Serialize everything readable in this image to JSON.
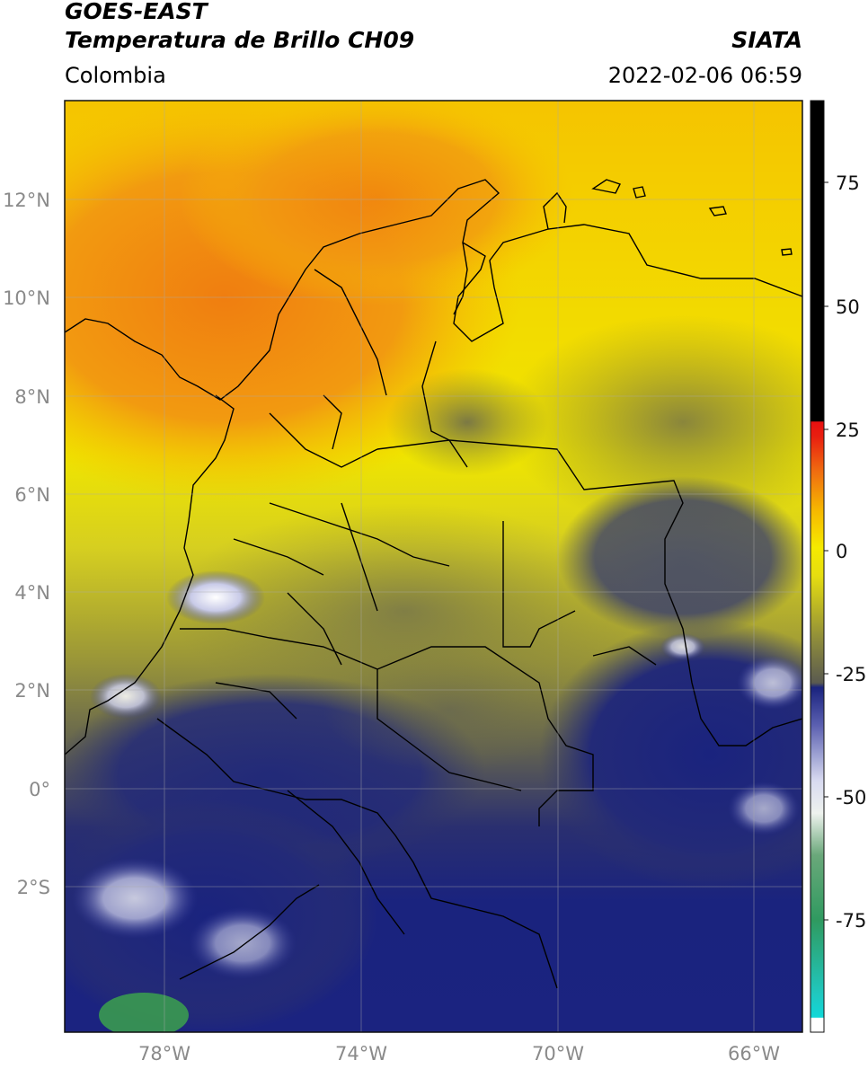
{
  "header": {
    "satellite": "GOES-EAST",
    "product": "Temperatura de Brillo CH09",
    "brand": "SIATA",
    "region": "Colombia",
    "timestamp": "2022-02-06 06:59"
  },
  "axes": {
    "lat_ticks": [
      "12°N",
      "10°N",
      "8°N",
      "6°N",
      "4°N",
      "2°N",
      "0°",
      "2°S"
    ],
    "lon_ticks": [
      "78°W",
      "74°W",
      "70°W",
      "66°W"
    ]
  },
  "colorbar": {
    "ticks": [
      "75",
      "50",
      "25",
      "0",
      "-25",
      "-50",
      "-75"
    ]
  },
  "colors": {
    "warm_orange": "#f08a10",
    "yellow": "#f2e400",
    "olive": "#8f8f33",
    "gray": "#5e5e4e",
    "navy": "#1a237e",
    "white_cloud": "#f4f4ff",
    "green": "#3a9a50",
    "cyan": "#1ed2d2"
  }
}
